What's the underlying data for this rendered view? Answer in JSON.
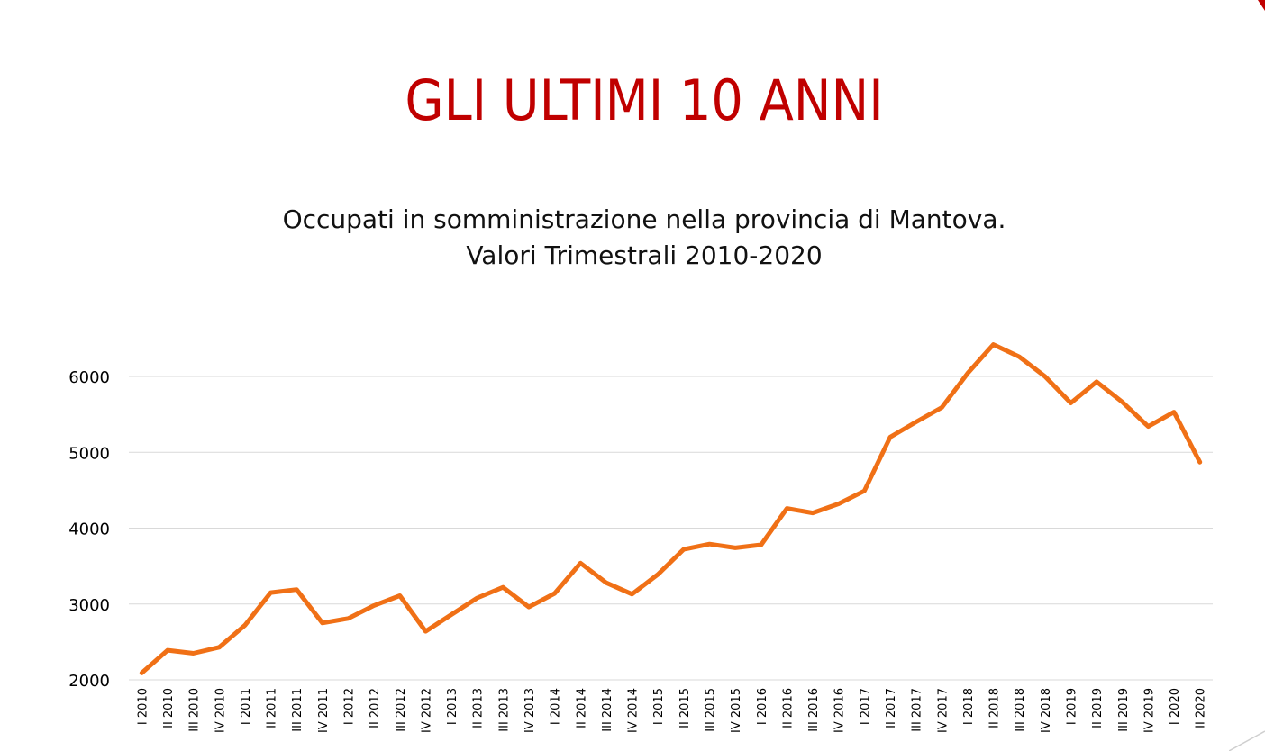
{
  "slide": {
    "title": "GLI ULTIMI 10 ANNI"
  },
  "colors": {
    "title": "#c00000",
    "line": "#f07016",
    "grid": "#d9d9d9",
    "text": "#000000"
  },
  "chart_data": {
    "type": "line",
    "title_lines": [
      "Occupati in somministrazione nella provincia di Mantova.",
      "Valori Trimestrali 2010-2020"
    ],
    "xlabel": "",
    "ylabel": "",
    "ylim": [
      2000,
      6000
    ],
    "yticks": [
      2000,
      3000,
      4000,
      5000,
      6000
    ],
    "grid": true,
    "legend": "none",
    "categories": [
      "I 2010",
      "II 2010",
      "III 2010",
      "IV 2010",
      "I 2011",
      "II 2011",
      "III 2011",
      "IV 2011",
      "I 2012",
      "II 2012",
      "III 2012",
      "IV 2012",
      "I 2013",
      "II 2013",
      "III 2013",
      "IV 2013",
      "I 2014",
      "II 2014",
      "III 2014",
      "IV 2014",
      "I 2015",
      "II 2015",
      "III 2015",
      "IV 2015",
      "I 2016",
      "II 2016",
      "III 2016",
      "IV 2016",
      "I 2017",
      "II 2017",
      "III 2017",
      "IV 2017",
      "I 2018",
      "II 2018",
      "III 2018",
      "IV 2018",
      "I 2019",
      "II 2019",
      "III 2019",
      "IV 2019",
      "I 2020",
      "II 2020"
    ],
    "series": [
      {
        "values": [
          2090,
          2390,
          2350,
          2430,
          2720,
          3150,
          3190,
          2750,
          2810,
          2980,
          3110,
          2640,
          2860,
          3080,
          3220,
          2960,
          3140,
          3540,
          3280,
          3130,
          3390,
          3720,
          3790,
          3740,
          3780,
          4260,
          4200,
          4320,
          4490,
          5200,
          5400,
          5590,
          6040,
          6420,
          6260,
          6000,
          5650,
          5930,
          5660,
          5340,
          5530,
          4870
        ]
      }
    ]
  }
}
